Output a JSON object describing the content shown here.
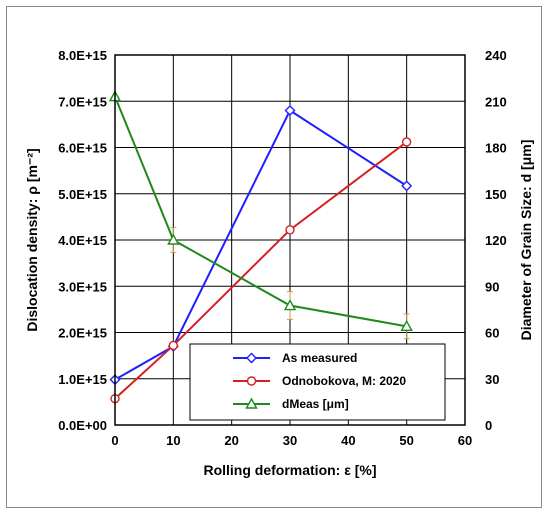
{
  "chart_data": {
    "type": "line",
    "xlabel": "Rolling deformation: ε [%]",
    "ylabel_left": "Dislocation density: ρ [m⁻²]",
    "ylabel_right": "Diameter of Grain Size: d  [μm]",
    "xlim": [
      0,
      60
    ],
    "xticks": [
      "0",
      "10",
      "20",
      "30",
      "40",
      "50",
      "60"
    ],
    "ylim_left": [
      0,
      8000000000000000.0
    ],
    "yticks_left": [
      "0.0E+00",
      "1.0E+15",
      "2.0E+15",
      "3.0E+15",
      "4.0E+15",
      "5.0E+15",
      "6.0E+15",
      "7.0E+15",
      "8.0E+15"
    ],
    "ylim_right": [
      0,
      240
    ],
    "yticks_right": [
      "0",
      "30",
      "60",
      "90",
      "120",
      "150",
      "180",
      "210",
      "240"
    ],
    "grid": true,
    "legend_position": "bottom-right",
    "series": [
      {
        "name": "As measured",
        "axis": "left",
        "color": "#1f1fff",
        "marker": "diamond",
        "x": [
          0,
          10,
          30,
          50
        ],
        "y": [
          980000000000000.0,
          1700000000000000.0,
          6800000000000000.0,
          5170000000000000.0
        ]
      },
      {
        "name": "Odnobokova, M: 2020",
        "axis": "left",
        "color": "#d42020",
        "marker": "circle",
        "x": [
          0,
          10,
          30,
          50
        ],
        "y": [
          570000000000000.0,
          1720000000000000.0,
          4220000000000000.0,
          6120000000000000.0
        ]
      },
      {
        "name": "dMeas [μm]",
        "axis": "right",
        "color": "#1e8a1e",
        "marker": "triangle",
        "x": [
          0,
          10,
          30,
          50
        ],
        "y": [
          213,
          120,
          77.5,
          64
        ],
        "error": [
          0,
          8,
          9,
          8
        ],
        "error_color": "#c8a040"
      }
    ]
  }
}
